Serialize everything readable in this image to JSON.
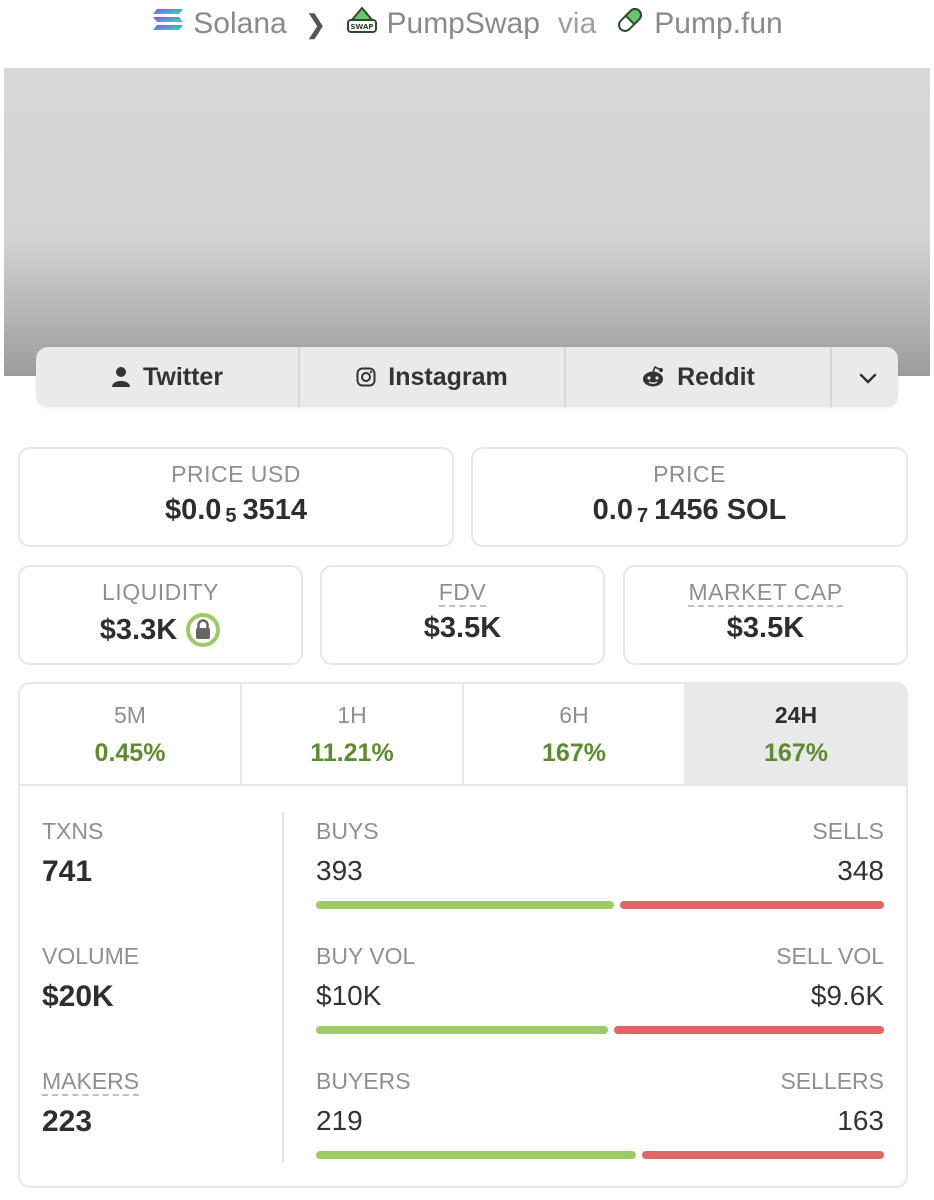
{
  "breadcrumb": {
    "chain": "Solana",
    "dex": "PumpSwap",
    "via": "via",
    "launchpad": "Pump.fun"
  },
  "social": {
    "twitter": "Twitter",
    "instagram": "Instagram",
    "reddit": "Reddit"
  },
  "price_usd": {
    "label": "PRICE USD",
    "prefix": "$0.0",
    "zeros": "5",
    "digits": "3514"
  },
  "price_sol": {
    "label": "PRICE",
    "prefix": "0.0",
    "zeros": "7",
    "digits": "1456 SOL"
  },
  "liquidity": {
    "label": "LIQUIDITY",
    "value": "$3.3K"
  },
  "fdv": {
    "label": "FDV",
    "value": "$3.5K"
  },
  "market_cap": {
    "label": "MARKET CAP",
    "value": "$3.5K"
  },
  "periods": [
    {
      "label": "5M",
      "change": "0.45%"
    },
    {
      "label": "1H",
      "change": "11.21%"
    },
    {
      "label": "6H",
      "change": "167%"
    },
    {
      "label": "24H",
      "change": "167%"
    }
  ],
  "stats": {
    "txns": {
      "label": "TXNS",
      "value": "741",
      "buys_label": "BUYS",
      "buys": "393",
      "sells_label": "SELLS",
      "sells": "348",
      "buy_fraction": 0.53
    },
    "volume": {
      "label": "VOLUME",
      "value": "$20K",
      "buys_label": "BUY VOL",
      "buys": "$10K",
      "sells_label": "SELL VOL",
      "sells": "$9.6K",
      "buy_fraction": 0.52
    },
    "makers": {
      "label": "MAKERS",
      "value": "223",
      "buys_label": "BUYERS",
      "buys": "219",
      "sells_label": "SELLERS",
      "sells": "163",
      "buy_fraction": 0.57
    }
  },
  "colors": {
    "positive": "#5c8c30",
    "buy_bar": "#9ccb65",
    "sell_bar": "#e06666",
    "lock_ring": "#9ccb65"
  }
}
